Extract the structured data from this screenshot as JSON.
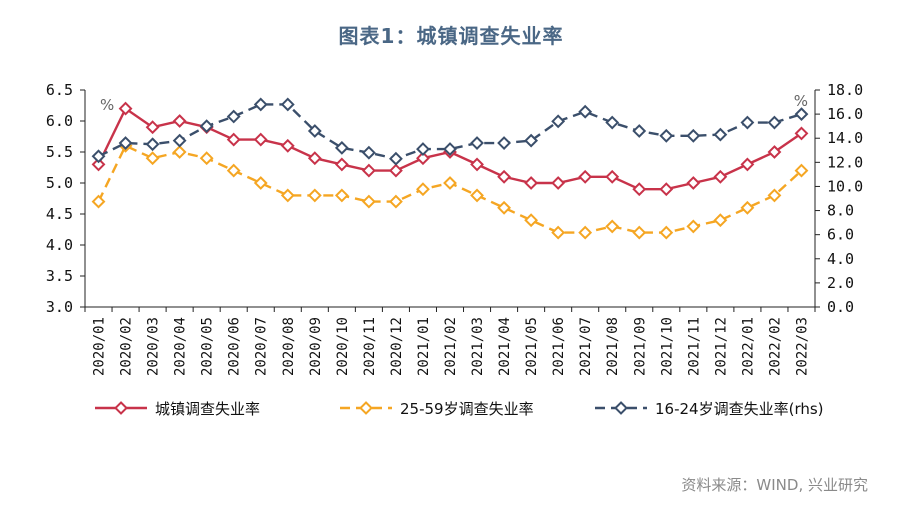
{
  "title": "图表1：城镇调查失业率",
  "source": "资料来源：WIND, 兴业研究",
  "chart_data": {
    "type": "line",
    "title": "图表1：城镇调查失业率",
    "categories": [
      "2020/01",
      "2020/02",
      "2020/03",
      "2020/04",
      "2020/05",
      "2020/06",
      "2020/07",
      "2020/08",
      "2020/09",
      "2020/10",
      "2020/11",
      "2020/12",
      "2021/01",
      "2021/02",
      "2021/03",
      "2021/04",
      "2021/05",
      "2021/06",
      "2021/07",
      "2021/08",
      "2021/09",
      "2021/10",
      "2021/11",
      "2021/12",
      "2022/01",
      "2022/02",
      "2022/03"
    ],
    "y_left": {
      "min": 3.0,
      "max": 6.5,
      "step": 0.5,
      "ticks": [
        "3.0",
        "3.5",
        "4.0",
        "4.5",
        "5.0",
        "5.5",
        "6.0",
        "6.5"
      ],
      "unit": "%"
    },
    "y_right": {
      "min": 0.0,
      "max": 18.0,
      "step": 2.0,
      "ticks": [
        "0.0",
        "2.0",
        "4.0",
        "6.0",
        "8.0",
        "10.0",
        "12.0",
        "14.0",
        "16.0",
        "18.0"
      ],
      "unit": "%"
    },
    "series": [
      {
        "name": "城镇调查失业率",
        "axis": "left",
        "color": "#c8334a",
        "style": "solid",
        "values": [
          5.3,
          6.2,
          5.9,
          6.0,
          5.9,
          5.7,
          5.7,
          5.6,
          5.4,
          5.3,
          5.2,
          5.2,
          5.4,
          5.5,
          5.3,
          5.1,
          5.0,
          5.0,
          5.1,
          5.1,
          4.9,
          4.9,
          5.0,
          5.1,
          5.3,
          5.5,
          5.8
        ]
      },
      {
        "name": "25-59岁调查失业率",
        "axis": "left",
        "color": "#f5a623",
        "style": "dashed",
        "values": [
          4.7,
          5.6,
          5.4,
          5.5,
          5.4,
          5.2,
          5.0,
          4.8,
          4.8,
          4.8,
          4.7,
          4.7,
          4.9,
          5.0,
          4.8,
          4.6,
          4.4,
          4.2,
          4.2,
          4.3,
          4.2,
          4.2,
          4.3,
          4.4,
          4.6,
          4.8,
          5.2
        ]
      },
      {
        "name": "16-24岁调查失业率(rhs)",
        "axis": "right",
        "color": "#3b4f6b",
        "style": "dashed",
        "values": [
          12.5,
          13.6,
          13.5,
          13.8,
          15.0,
          15.8,
          16.8,
          16.8,
          14.6,
          13.2,
          12.8,
          12.3,
          13.1,
          13.1,
          13.6,
          13.6,
          13.8,
          15.4,
          16.2,
          15.3,
          14.6,
          14.2,
          14.2,
          14.3,
          15.3,
          15.3,
          16.0
        ]
      }
    ],
    "legend": {
      "position": "bottom",
      "items": [
        "城镇调查失业率",
        "25-59岁调查失业率",
        "16-24岁调查失业率(rhs)"
      ]
    },
    "grid": false
  }
}
